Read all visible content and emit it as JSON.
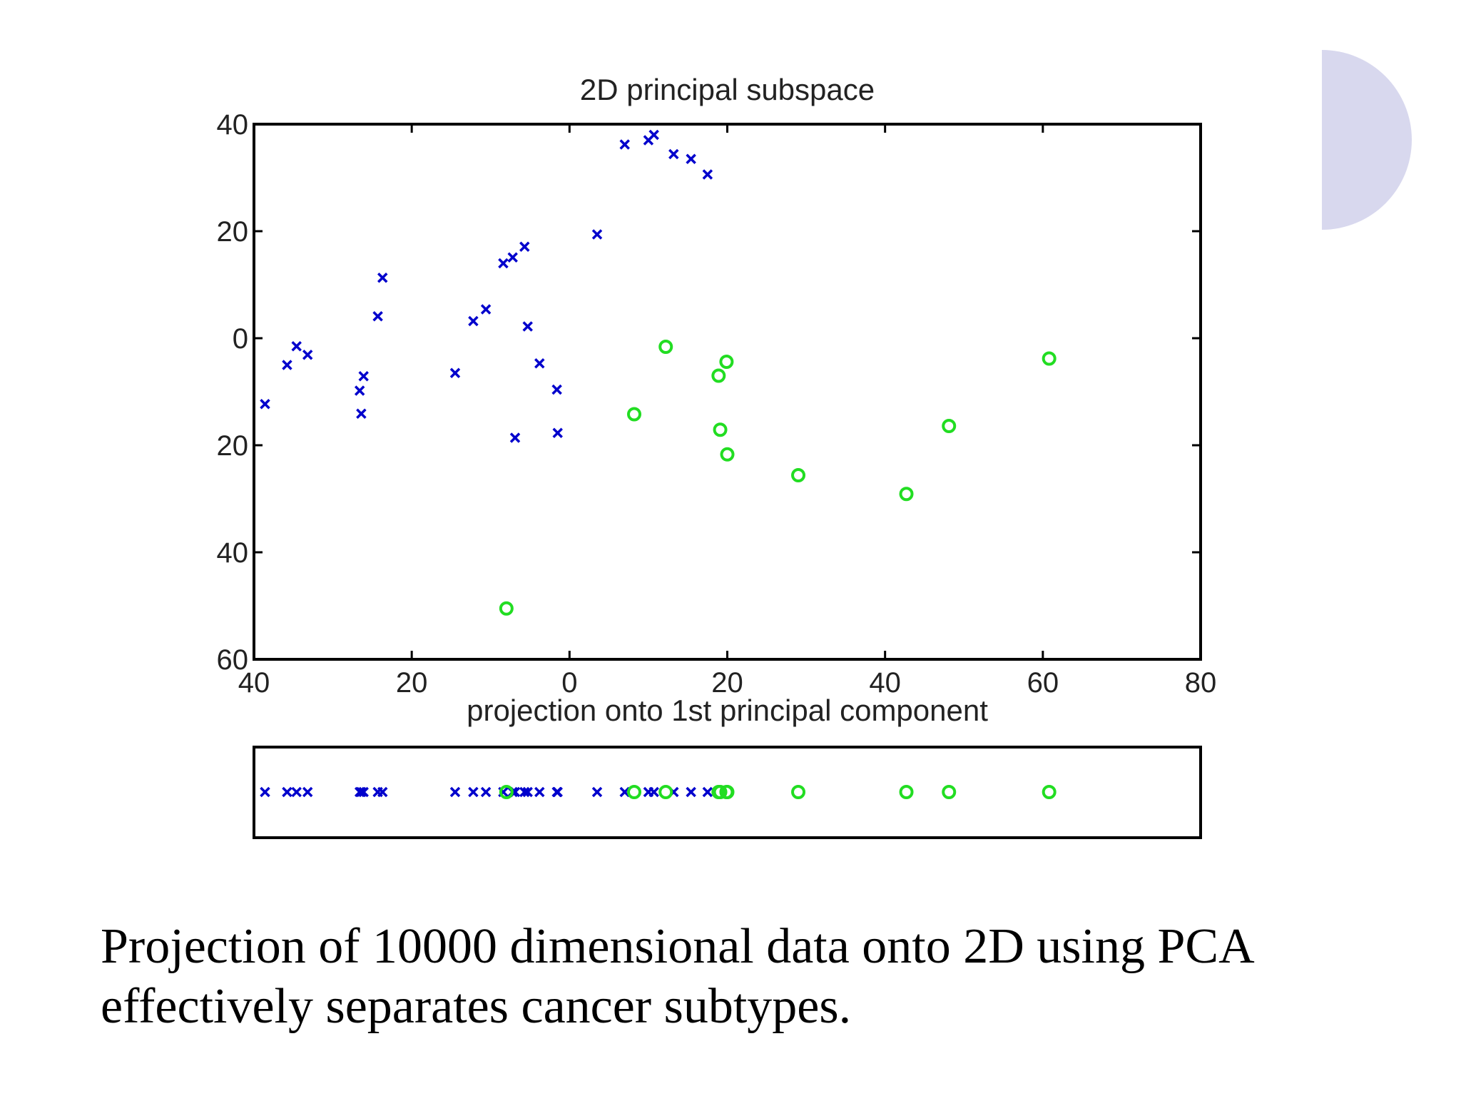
{
  "slide": {
    "caption_line1": "Projection of 10000 dimensional data onto 2D using PCA",
    "caption_line2": "effectively separates cancer subtypes.",
    "accent_color": "#d8d8ee"
  },
  "chart_data": [
    {
      "type": "scatter",
      "title": "2D principal subspace",
      "xlabel": "projection onto 1st principal component",
      "ylabel": "",
      "xlim": [
        -40,
        80
      ],
      "ylim": [
        -60,
        40
      ],
      "x_ticks": [
        -40,
        -20,
        0,
        20,
        40,
        60,
        80
      ],
      "x_tick_labels": [
        "40",
        "20",
        "0",
        "20",
        "40",
        "60",
        "80"
      ],
      "y_ticks": [
        40,
        20,
        0,
        -20,
        -40,
        -60
      ],
      "y_tick_labels": [
        "40",
        "20",
        "0",
        "20",
        "40",
        "60"
      ],
      "series": [
        {
          "marker": "x",
          "color": "#0000cc",
          "points": [
            [
              -38.6,
              -12.3
            ],
            [
              -35.8,
              -5.0
            ],
            [
              -34.6,
              -1.5
            ],
            [
              -33.2,
              -3.1
            ],
            [
              -26.6,
              -9.8
            ],
            [
              -26.4,
              -14.1
            ],
            [
              -26.1,
              -7.1
            ],
            [
              -24.3,
              4.1
            ],
            [
              -23.7,
              11.3
            ],
            [
              -14.5,
              -6.5
            ],
            [
              -12.2,
              3.2
            ],
            [
              -10.6,
              5.4
            ],
            [
              -8.4,
              14.0
            ],
            [
              -7.2,
              15.1
            ],
            [
              -6.9,
              -18.6
            ],
            [
              -5.7,
              17.1
            ],
            [
              -5.3,
              2.2
            ],
            [
              -3.8,
              -4.7
            ],
            [
              -1.6,
              -9.6
            ],
            [
              -1.5,
              -17.7
            ],
            [
              3.5,
              19.4
            ],
            [
              7.0,
              36.2
            ],
            [
              10.0,
              37.0
            ],
            [
              10.7,
              38.0
            ],
            [
              13.2,
              34.4
            ],
            [
              15.4,
              33.5
            ],
            [
              17.5,
              30.6
            ]
          ]
        },
        {
          "marker": "o",
          "color": "#22dd22",
          "points": [
            [
              -8.0,
              -50.5
            ],
            [
              8.2,
              -14.2
            ],
            [
              12.2,
              -1.6
            ],
            [
              18.9,
              -7.0
            ],
            [
              19.1,
              -17.1
            ],
            [
              19.9,
              -4.4
            ],
            [
              20.0,
              -21.7
            ],
            [
              29.0,
              -25.6
            ],
            [
              42.7,
              -29.1
            ],
            [
              48.1,
              -16.4
            ],
            [
              60.8,
              -3.8
            ]
          ]
        }
      ]
    },
    {
      "type": "scatter",
      "title": "",
      "xlabel": "",
      "xlim": [
        -40,
        80
      ],
      "axis": "1D projection strip",
      "series": [
        {
          "marker": "x",
          "color": "#0000cc",
          "x": [
            -38.6,
            -35.8,
            -34.6,
            -33.2,
            -26.6,
            -26.4,
            -26.1,
            -24.3,
            -23.7,
            -14.5,
            -12.2,
            -10.6,
            -8.4,
            -7.2,
            -6.9,
            -5.7,
            -5.3,
            -3.8,
            -1.6,
            -1.5,
            3.5,
            7.0,
            10.0,
            10.7,
            13.2,
            15.4,
            17.5
          ]
        },
        {
          "marker": "o",
          "color": "#22dd22",
          "x": [
            -8.0,
            8.2,
            12.2,
            18.9,
            19.1,
            19.9,
            20.0,
            29.0,
            42.7,
            48.1,
            60.8
          ]
        }
      ]
    }
  ]
}
